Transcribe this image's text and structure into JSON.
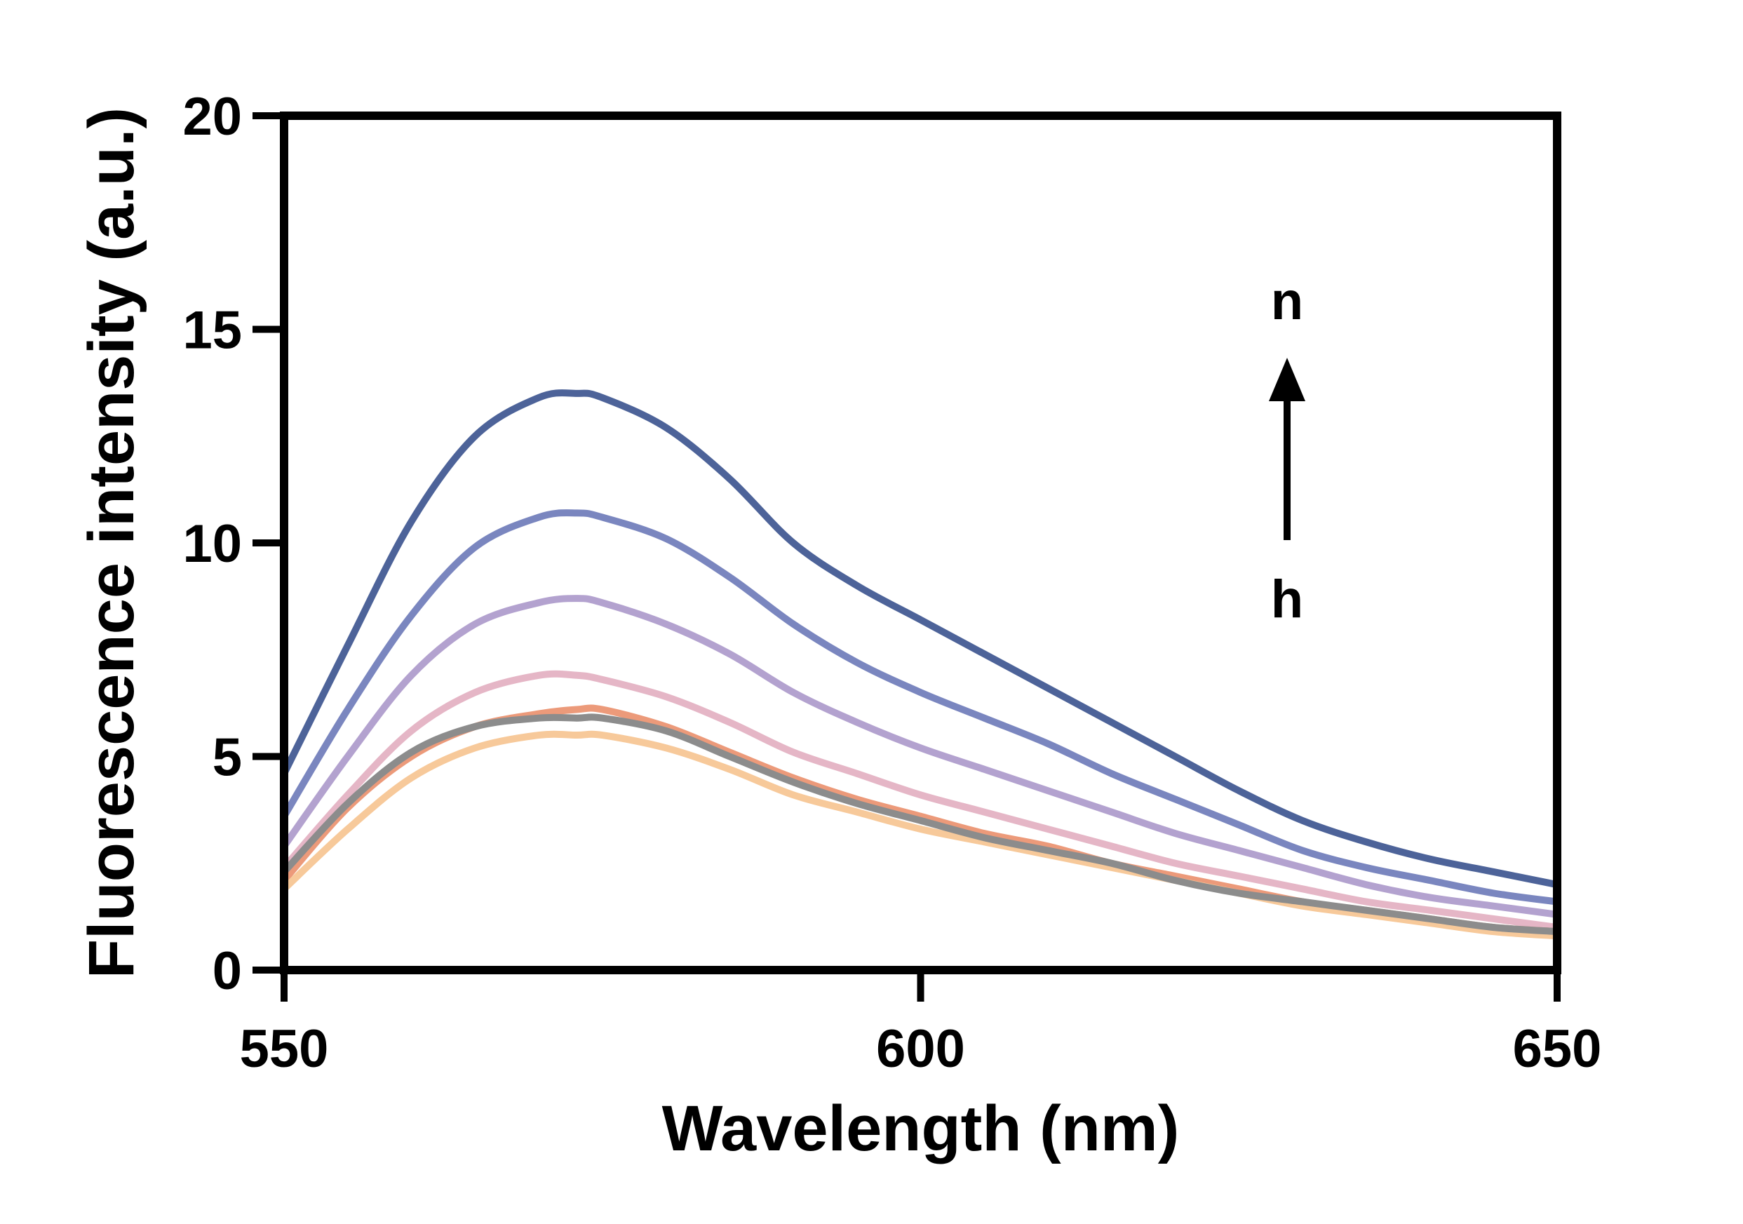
{
  "chart_data": {
    "type": "line",
    "title": "",
    "xlabel": "Wavelength (nm)",
    "ylabel": "Fluorescence intensity (a.u.)",
    "xlim": [
      550,
      650
    ],
    "ylim": [
      0,
      20
    ],
    "xticks": [
      "550",
      "600",
      "650"
    ],
    "yticks": [
      "0",
      "5",
      "10",
      "15",
      "20"
    ],
    "grid": false,
    "legend": "none",
    "x": [
      550,
      555,
      560,
      565,
      570,
      573,
      575,
      580,
      585,
      590,
      595,
      600,
      605,
      610,
      615,
      620,
      625,
      630,
      635,
      640,
      645,
      650
    ],
    "series": [
      {
        "color": "#4d6399",
        "values": [
          4.6,
          7.6,
          10.5,
          12.5,
          13.4,
          13.5,
          13.4,
          12.7,
          11.5,
          10.0,
          9.0,
          8.2,
          7.4,
          6.6,
          5.8,
          5.0,
          4.2,
          3.5,
          3.0,
          2.6,
          2.3,
          2.0
        ]
      },
      {
        "color": "#7a86bf",
        "values": [
          3.6,
          6.1,
          8.3,
          9.9,
          10.6,
          10.7,
          10.6,
          10.1,
          9.2,
          8.1,
          7.2,
          6.5,
          5.9,
          5.3,
          4.6,
          4.0,
          3.4,
          2.8,
          2.4,
          2.1,
          1.8,
          1.6
        ]
      },
      {
        "color": "#b3a2cf",
        "values": [
          2.9,
          5.0,
          6.9,
          8.1,
          8.6,
          8.7,
          8.6,
          8.1,
          7.4,
          6.5,
          5.8,
          5.2,
          4.7,
          4.2,
          3.7,
          3.2,
          2.8,
          2.4,
          2.0,
          1.7,
          1.5,
          1.3
        ]
      },
      {
        "color": "#e5b6c6",
        "values": [
          2.4,
          4.1,
          5.6,
          6.5,
          6.9,
          6.9,
          6.8,
          6.4,
          5.8,
          5.1,
          4.6,
          4.1,
          3.7,
          3.3,
          2.9,
          2.5,
          2.2,
          1.9,
          1.6,
          1.4,
          1.2,
          1.0
        ]
      },
      {
        "color": "#ec9a7a",
        "values": [
          2.1,
          3.8,
          5.0,
          5.7,
          6.0,
          6.1,
          6.1,
          5.7,
          5.1,
          4.5,
          4.0,
          3.6,
          3.2,
          2.9,
          2.5,
          2.2,
          1.9,
          1.6,
          1.4,
          1.2,
          1.0,
          0.9
        ]
      },
      {
        "color": "#f7c99a",
        "values": [
          1.9,
          3.3,
          4.5,
          5.2,
          5.5,
          5.5,
          5.5,
          5.2,
          4.7,
          4.1,
          3.7,
          3.3,
          3.0,
          2.7,
          2.4,
          2.1,
          1.8,
          1.5,
          1.3,
          1.1,
          0.9,
          0.8
        ]
      },
      {
        "color": "#8c8c8c",
        "values": [
          2.3,
          3.9,
          5.1,
          5.7,
          5.9,
          5.9,
          5.9,
          5.6,
          5.0,
          4.4,
          3.9,
          3.5,
          3.1,
          2.8,
          2.5,
          2.1,
          1.8,
          1.6,
          1.4,
          1.2,
          1.0,
          0.9
        ]
      }
    ],
    "annotations": {
      "top_label": "n",
      "bottom_label": "h"
    }
  }
}
